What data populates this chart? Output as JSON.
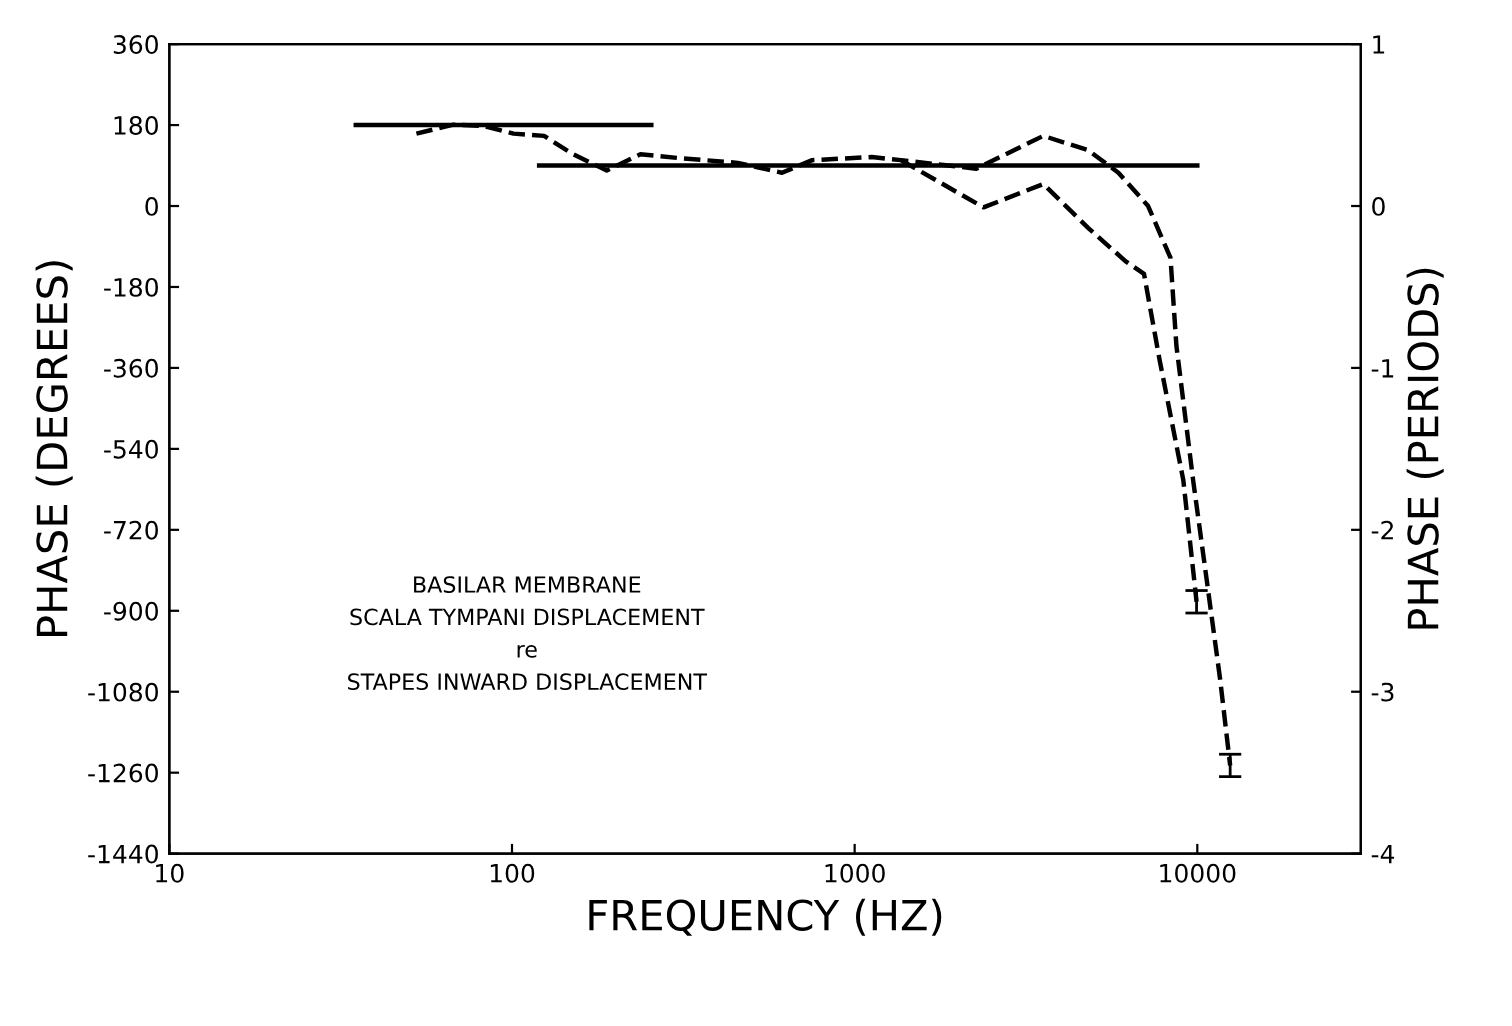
{
  "chart_data": {
    "type": "line",
    "xlabel": "FREQUENCY (HZ)",
    "ylabel": "PHASE (DEGREES)",
    "y2label": "PHASE (PERIODS)",
    "log": "x",
    "xlim": [
      10,
      30000
    ],
    "xticks": [
      10,
      100,
      1000,
      10000
    ],
    "ylim": [
      -1440,
      360
    ],
    "yticks": [
      -1440,
      -1260,
      -1080,
      -900,
      -720,
      -540,
      -360,
      -180,
      0,
      180,
      360
    ],
    "y2lim": [
      -4,
      1
    ],
    "y2ticks": [
      -4,
      -3,
      -2,
      -1,
      0,
      1
    ],
    "grid": false,
    "legend": false,
    "annotations": [
      "BASILAR MEMBRANE",
      "SCALA TYMPANI DISPLACEMENT",
      "re",
      "STAPES INWARD DISPLACEMENT"
    ],
    "series": [
      {
        "color": "#000000",
        "line_style": "dashed",
        "x": [
          52.6,
          67.5,
          82.8,
          101,
          124,
          151,
          189,
          237,
          303,
          456,
          614,
          752,
          1122,
          1365,
          2264,
          2757,
          3554,
          4808,
          5884,
          7185,
          8350,
          8690,
          9720,
          10650,
          11660,
          12470
        ],
        "values": [
          161,
          181,
          178,
          161,
          156,
          115,
          79,
          115,
          107,
          96,
          74,
          102,
          109,
          102,
          83,
          115,
          156,
          124,
          74,
          0,
          -115,
          -311,
          -609,
          -831,
          -1053,
          -1244
        ],
        "errors": [
          null,
          null,
          null,
          null,
          null,
          null,
          null,
          null,
          null,
          null,
          null,
          null,
          null,
          null,
          null,
          null,
          null,
          null,
          null,
          null,
          null,
          null,
          null,
          null,
          null,
          25
        ]
      },
      {
        "color": "#000000",
        "line_style": "dashed",
        "x": [
          1365,
          2377,
          3554,
          4808,
          6180,
          6990,
          7760,
          9100,
          9950
        ],
        "values": [
          102,
          -3,
          49,
          -49,
          -123,
          -151,
          -342,
          -609,
          -880
        ],
        "errors": [
          null,
          null,
          null,
          null,
          null,
          null,
          null,
          null,
          25
        ]
      },
      {
        "color": "#000000",
        "line_style": "solid",
        "x": [
          35,
          255
        ],
        "values": [
          180,
          180
        ]
      },
      {
        "color": "#000000",
        "line_style": "solid",
        "x": [
          120,
          10000
        ],
        "values": [
          90,
          90
        ]
      }
    ]
  }
}
